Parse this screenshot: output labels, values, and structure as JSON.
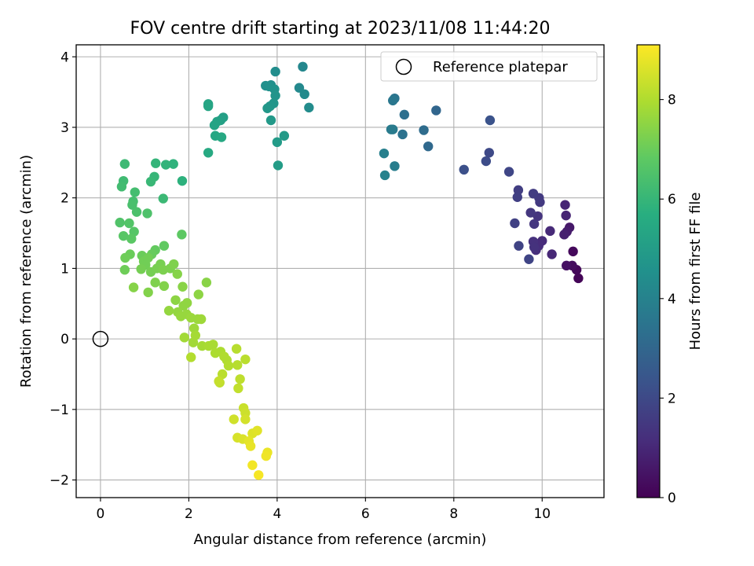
{
  "chart_data": {
    "type": "scatter",
    "title": "FOV centre drift starting at 2023/11/08 11:44:20",
    "xlabel": "Angular distance from reference (arcmin)",
    "ylabel": "Rotation from reference (arcmin)",
    "xlim": [
      -0.55,
      11.4
    ],
    "ylim": [
      -2.25,
      4.17
    ],
    "grid": true,
    "x_ticks": [
      0,
      2,
      4,
      6,
      8,
      10
    ],
    "y_ticks": [
      -2,
      -1,
      0,
      1,
      2,
      3,
      4
    ],
    "legend": {
      "placement": "top-right",
      "entries": [
        "Reference platepar"
      ]
    },
    "reference_point": {
      "x": 0,
      "y": 0
    },
    "colorbar": {
      "label": "Hours from first FF file",
      "range": [
        0,
        9.1
      ],
      "ticks": [
        0,
        2,
        4,
        6,
        8
      ],
      "colormap": "viridis"
    },
    "series": [
      {
        "color_by": "hours",
        "points": [
          {
            "x": 10.82,
            "y": 0.86,
            "h": 0.1
          },
          {
            "x": 10.78,
            "y": 0.98,
            "h": 0.15
          },
          {
            "x": 10.7,
            "y": 1.24,
            "h": 0.2
          },
          {
            "x": 10.68,
            "y": 1.04,
            "h": 0.3
          },
          {
            "x": 10.55,
            "y": 1.04,
            "h": 0.4
          },
          {
            "x": 10.62,
            "y": 1.58,
            "h": 0.6
          },
          {
            "x": 10.56,
            "y": 1.52,
            "h": 0.7
          },
          {
            "x": 10.5,
            "y": 1.48,
            "h": 0.8
          },
          {
            "x": 10.54,
            "y": 1.75,
            "h": 0.9
          },
          {
            "x": 10.52,
            "y": 1.9,
            "h": 0.95
          },
          {
            "x": 10.22,
            "y": 1.2,
            "h": 1.0
          },
          {
            "x": 10.18,
            "y": 1.53,
            "h": 1.05
          },
          {
            "x": 10.0,
            "y": 1.39,
            "h": 1.1
          },
          {
            "x": 9.92,
            "y": 1.32,
            "h": 1.15
          },
          {
            "x": 9.86,
            "y": 1.26,
            "h": 1.2
          },
          {
            "x": 9.8,
            "y": 1.38,
            "h": 1.25
          },
          {
            "x": 9.82,
            "y": 1.3,
            "h": 1.3
          },
          {
            "x": 9.9,
            "y": 1.74,
            "h": 1.35
          },
          {
            "x": 9.82,
            "y": 1.63,
            "h": 1.4
          },
          {
            "x": 9.74,
            "y": 1.79,
            "h": 1.45
          },
          {
            "x": 9.95,
            "y": 1.94,
            "h": 1.5
          },
          {
            "x": 9.93,
            "y": 2.0,
            "h": 1.55
          },
          {
            "x": 9.8,
            "y": 2.06,
            "h": 1.6
          },
          {
            "x": 9.46,
            "y": 2.11,
            "h": 1.65
          },
          {
            "x": 9.44,
            "y": 2.01,
            "h": 1.7
          },
          {
            "x": 9.38,
            "y": 1.64,
            "h": 1.75
          },
          {
            "x": 9.47,
            "y": 1.32,
            "h": 1.8
          },
          {
            "x": 9.7,
            "y": 1.13,
            "h": 1.85
          },
          {
            "x": 9.25,
            "y": 2.37,
            "h": 1.9
          },
          {
            "x": 8.8,
            "y": 2.64,
            "h": 2.0
          },
          {
            "x": 8.73,
            "y": 2.52,
            "h": 2.1
          },
          {
            "x": 8.23,
            "y": 2.4,
            "h": 2.2
          },
          {
            "x": 8.82,
            "y": 3.1,
            "h": 2.3
          },
          {
            "x": 7.6,
            "y": 3.24,
            "h": 3.0
          },
          {
            "x": 7.42,
            "y": 2.73,
            "h": 3.1
          },
          {
            "x": 7.32,
            "y": 2.96,
            "h": 3.2
          },
          {
            "x": 6.88,
            "y": 3.18,
            "h": 3.3
          },
          {
            "x": 6.84,
            "y": 2.9,
            "h": 3.4
          },
          {
            "x": 6.66,
            "y": 3.41,
            "h": 3.5
          },
          {
            "x": 6.62,
            "y": 3.38,
            "h": 3.6
          },
          {
            "x": 6.62,
            "y": 2.97,
            "h": 3.7
          },
          {
            "x": 6.58,
            "y": 2.97,
            "h": 3.75
          },
          {
            "x": 6.66,
            "y": 2.45,
            "h": 3.8
          },
          {
            "x": 6.42,
            "y": 2.63,
            "h": 3.9
          },
          {
            "x": 6.44,
            "y": 2.32,
            "h": 4.0
          },
          {
            "x": 4.58,
            "y": 3.86,
            "h": 4.2
          },
          {
            "x": 4.5,
            "y": 3.56,
            "h": 4.25
          },
          {
            "x": 4.62,
            "y": 3.47,
            "h": 4.3
          },
          {
            "x": 4.72,
            "y": 3.28,
            "h": 4.35
          },
          {
            "x": 3.96,
            "y": 3.79,
            "h": 4.4
          },
          {
            "x": 3.86,
            "y": 3.6,
            "h": 4.45
          },
          {
            "x": 3.74,
            "y": 3.59,
            "h": 4.5
          },
          {
            "x": 3.82,
            "y": 3.58,
            "h": 4.55
          },
          {
            "x": 3.94,
            "y": 3.54,
            "h": 4.6
          },
          {
            "x": 3.96,
            "y": 3.45,
            "h": 4.65
          },
          {
            "x": 3.92,
            "y": 3.34,
            "h": 4.7
          },
          {
            "x": 3.84,
            "y": 3.3,
            "h": 4.75
          },
          {
            "x": 3.78,
            "y": 3.27,
            "h": 4.8
          },
          {
            "x": 3.86,
            "y": 3.1,
            "h": 4.85
          },
          {
            "x": 4.16,
            "y": 2.88,
            "h": 4.9
          },
          {
            "x": 4.0,
            "y": 2.79,
            "h": 4.95
          },
          {
            "x": 4.02,
            "y": 2.46,
            "h": 5.0
          },
          {
            "x": 2.78,
            "y": 3.14,
            "h": 5.1
          },
          {
            "x": 2.72,
            "y": 3.1,
            "h": 5.15
          },
          {
            "x": 2.64,
            "y": 3.08,
            "h": 5.2
          },
          {
            "x": 2.58,
            "y": 3.03,
            "h": 5.25
          },
          {
            "x": 2.44,
            "y": 3.33,
            "h": 5.3
          },
          {
            "x": 2.44,
            "y": 3.3,
            "h": 5.35
          },
          {
            "x": 2.6,
            "y": 2.88,
            "h": 5.4
          },
          {
            "x": 2.74,
            "y": 2.86,
            "h": 5.45
          },
          {
            "x": 2.44,
            "y": 2.64,
            "h": 5.5
          },
          {
            "x": 1.85,
            "y": 2.24,
            "h": 5.8
          },
          {
            "x": 1.65,
            "y": 2.48,
            "h": 5.85
          },
          {
            "x": 1.48,
            "y": 2.47,
            "h": 5.9
          },
          {
            "x": 1.25,
            "y": 2.49,
            "h": 5.95
          },
          {
            "x": 1.22,
            "y": 2.3,
            "h": 6.0
          },
          {
            "x": 1.14,
            "y": 2.23,
            "h": 6.05
          },
          {
            "x": 1.42,
            "y": 1.99,
            "h": 6.1
          },
          {
            "x": 0.55,
            "y": 2.48,
            "h": 6.15
          },
          {
            "x": 0.52,
            "y": 2.24,
            "h": 6.2
          },
          {
            "x": 0.48,
            "y": 2.16,
            "h": 6.25
          },
          {
            "x": 0.78,
            "y": 2.08,
            "h": 6.3
          },
          {
            "x": 0.74,
            "y": 1.95,
            "h": 6.35
          },
          {
            "x": 0.72,
            "y": 1.9,
            "h": 6.4
          },
          {
            "x": 0.82,
            "y": 1.8,
            "h": 6.45
          },
          {
            "x": 1.06,
            "y": 1.78,
            "h": 6.5
          },
          {
            "x": 0.44,
            "y": 1.65,
            "h": 6.55
          },
          {
            "x": 0.65,
            "y": 1.64,
            "h": 6.6
          },
          {
            "x": 0.76,
            "y": 1.52,
            "h": 6.65
          },
          {
            "x": 0.52,
            "y": 1.46,
            "h": 6.7
          },
          {
            "x": 0.7,
            "y": 1.42,
            "h": 6.75
          },
          {
            "x": 1.84,
            "y": 1.48,
            "h": 6.8
          },
          {
            "x": 1.44,
            "y": 1.32,
            "h": 6.85
          },
          {
            "x": 1.24,
            "y": 1.26,
            "h": 6.9
          },
          {
            "x": 1.16,
            "y": 1.2,
            "h": 6.95
          },
          {
            "x": 0.94,
            "y": 1.18,
            "h": 7.0
          },
          {
            "x": 0.67,
            "y": 1.2,
            "h": 7.0
          },
          {
            "x": 0.56,
            "y": 1.15,
            "h": 7.05
          },
          {
            "x": 0.55,
            "y": 0.98,
            "h": 7.05
          },
          {
            "x": 0.98,
            "y": 1.1,
            "h": 7.1
          },
          {
            "x": 1.02,
            "y": 1.05,
            "h": 7.1
          },
          {
            "x": 1.08,
            "y": 1.15,
            "h": 7.1
          },
          {
            "x": 0.92,
            "y": 0.99,
            "h": 7.15
          },
          {
            "x": 1.14,
            "y": 0.95,
            "h": 7.15
          },
          {
            "x": 1.28,
            "y": 1.0,
            "h": 7.2
          },
          {
            "x": 1.36,
            "y": 1.06,
            "h": 7.2
          },
          {
            "x": 1.42,
            "y": 0.98,
            "h": 7.25
          },
          {
            "x": 1.58,
            "y": 1.0,
            "h": 7.25
          },
          {
            "x": 1.66,
            "y": 1.06,
            "h": 7.3
          },
          {
            "x": 1.24,
            "y": 0.8,
            "h": 7.3
          },
          {
            "x": 1.44,
            "y": 0.75,
            "h": 7.35
          },
          {
            "x": 1.08,
            "y": 0.66,
            "h": 7.35
          },
          {
            "x": 0.75,
            "y": 0.73,
            "h": 7.4
          },
          {
            "x": 1.74,
            "y": 0.92,
            "h": 7.4
          },
          {
            "x": 1.86,
            "y": 0.74,
            "h": 7.45
          },
          {
            "x": 2.4,
            "y": 0.8,
            "h": 7.45
          },
          {
            "x": 2.22,
            "y": 0.63,
            "h": 7.5
          },
          {
            "x": 1.7,
            "y": 0.55,
            "h": 7.5
          },
          {
            "x": 1.88,
            "y": 0.47,
            "h": 7.55
          },
          {
            "x": 1.96,
            "y": 0.51,
            "h": 7.55
          },
          {
            "x": 1.55,
            "y": 0.4,
            "h": 7.6
          },
          {
            "x": 1.75,
            "y": 0.38,
            "h": 7.6
          },
          {
            "x": 1.82,
            "y": 0.32,
            "h": 7.65
          },
          {
            "x": 1.95,
            "y": 0.35,
            "h": 7.65
          },
          {
            "x": 2.05,
            "y": 0.3,
            "h": 7.7
          },
          {
            "x": 2.2,
            "y": 0.28,
            "h": 7.7
          },
          {
            "x": 2.28,
            "y": 0.28,
            "h": 7.75
          },
          {
            "x": 2.12,
            "y": 0.15,
            "h": 7.75
          },
          {
            "x": 1.9,
            "y": 0.02,
            "h": 7.8
          },
          {
            "x": 2.1,
            "y": -0.05,
            "h": 7.8
          },
          {
            "x": 2.15,
            "y": 0.05,
            "h": 7.85
          },
          {
            "x": 2.3,
            "y": -0.1,
            "h": 7.85
          },
          {
            "x": 2.45,
            "y": -0.1,
            "h": 7.9
          },
          {
            "x": 2.55,
            "y": -0.08,
            "h": 7.9
          },
          {
            "x": 2.6,
            "y": -0.2,
            "h": 7.95
          },
          {
            "x": 2.72,
            "y": -0.18,
            "h": 7.95
          },
          {
            "x": 2.8,
            "y": -0.25,
            "h": 8.0
          },
          {
            "x": 2.86,
            "y": -0.3,
            "h": 8.0
          },
          {
            "x": 2.05,
            "y": -0.26,
            "h": 8.05
          },
          {
            "x": 2.9,
            "y": -0.38,
            "h": 8.05
          },
          {
            "x": 3.08,
            "y": -0.14,
            "h": 8.1
          },
          {
            "x": 3.1,
            "y": -0.37,
            "h": 8.1
          },
          {
            "x": 3.28,
            "y": -0.29,
            "h": 8.15
          },
          {
            "x": 2.76,
            "y": -0.5,
            "h": 8.15
          },
          {
            "x": 2.7,
            "y": -0.62,
            "h": 8.2
          },
          {
            "x": 3.16,
            "y": -0.57,
            "h": 8.2
          },
          {
            "x": 3.12,
            "y": -0.7,
            "h": 8.25
          },
          {
            "x": 2.68,
            "y": -0.6,
            "h": 8.3
          },
          {
            "x": 3.24,
            "y": -0.98,
            "h": 8.35
          },
          {
            "x": 3.28,
            "y": -1.05,
            "h": 8.4
          },
          {
            "x": 3.02,
            "y": -1.14,
            "h": 8.45
          },
          {
            "x": 3.28,
            "y": -1.14,
            "h": 8.5
          },
          {
            "x": 3.1,
            "y": -1.4,
            "h": 8.55
          },
          {
            "x": 3.22,
            "y": -1.42,
            "h": 8.6
          },
          {
            "x": 3.44,
            "y": -1.34,
            "h": 8.65
          },
          {
            "x": 3.55,
            "y": -1.3,
            "h": 8.7
          },
          {
            "x": 3.36,
            "y": -1.45,
            "h": 8.75
          },
          {
            "x": 3.4,
            "y": -1.52,
            "h": 8.8
          },
          {
            "x": 3.78,
            "y": -1.61,
            "h": 8.85
          },
          {
            "x": 3.75,
            "y": -1.66,
            "h": 8.9
          },
          {
            "x": 3.44,
            "y": -1.79,
            "h": 8.95
          },
          {
            "x": 3.58,
            "y": -1.93,
            "h": 9.0
          }
        ]
      }
    ]
  }
}
